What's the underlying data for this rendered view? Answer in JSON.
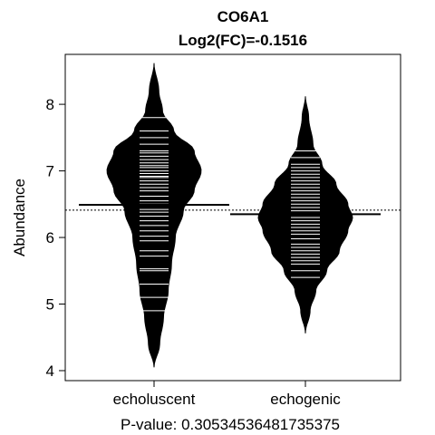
{
  "chart_data": {
    "type": "beanplot",
    "title": "CO6A1",
    "subtitle": "Log2(FC)=-0.1516",
    "xlabel": "P-value: 0.30534536481735375",
    "ylabel": "Abundance",
    "ylim": [
      3.85,
      8.75
    ],
    "yticks": [
      4,
      5,
      6,
      7,
      8
    ],
    "overall_mean": 6.41,
    "categories": [
      "echoluscent",
      "echogenic"
    ],
    "groups": [
      {
        "name": "echoluscent",
        "mean": 6.49,
        "density_range": [
          4.05,
          8.62
        ],
        "density_profile": [
          [
            4.05,
            0.0
          ],
          [
            4.4,
            0.12
          ],
          [
            4.8,
            0.2
          ],
          [
            5.2,
            0.3
          ],
          [
            5.6,
            0.37
          ],
          [
            6.0,
            0.45
          ],
          [
            6.4,
            0.62
          ],
          [
            6.7,
            0.85
          ],
          [
            7.0,
            1.0
          ],
          [
            7.3,
            0.85
          ],
          [
            7.6,
            0.42
          ],
          [
            7.9,
            0.18
          ],
          [
            8.2,
            0.1
          ],
          [
            8.62,
            0.0
          ]
        ],
        "observations": [
          4.9,
          5.1,
          5.3,
          5.5,
          5.53,
          5.72,
          5.8,
          5.95,
          6.02,
          6.1,
          6.18,
          6.25,
          6.32,
          6.38,
          6.42,
          6.5,
          6.55,
          6.62,
          6.7,
          6.75,
          6.8,
          6.85,
          6.9,
          6.92,
          6.96,
          7.0,
          7.05,
          7.08,
          7.12,
          7.17,
          7.22,
          7.27,
          7.3,
          7.4,
          7.5,
          7.6,
          7.8
        ]
      },
      {
        "name": "echogenic",
        "mean": 6.35,
        "density_range": [
          4.56,
          8.12
        ],
        "density_profile": [
          [
            4.56,
            0.0
          ],
          [
            4.9,
            0.1
          ],
          [
            5.2,
            0.22
          ],
          [
            5.5,
            0.45
          ],
          [
            5.8,
            0.72
          ],
          [
            6.1,
            0.9
          ],
          [
            6.3,
            1.0
          ],
          [
            6.5,
            0.9
          ],
          [
            6.8,
            0.65
          ],
          [
            7.1,
            0.35
          ],
          [
            7.4,
            0.16
          ],
          [
            7.8,
            0.07
          ],
          [
            8.12,
            0.0
          ]
        ],
        "observations": [
          5.4,
          5.5,
          5.6,
          5.65,
          5.7,
          5.75,
          5.8,
          5.85,
          5.9,
          5.98,
          6.05,
          6.1,
          6.15,
          6.2,
          6.25,
          6.3,
          6.35,
          6.4,
          6.45,
          6.5,
          6.55,
          6.6,
          6.65,
          6.7,
          6.75,
          6.8,
          6.85,
          6.9,
          6.95,
          7.0,
          7.05,
          7.1,
          7.2,
          7.3
        ]
      }
    ]
  },
  "colors": {
    "bean_fill": "#000000",
    "observation_line": "#ffffff",
    "frame": "#000000",
    "background": "#ffffff"
  }
}
